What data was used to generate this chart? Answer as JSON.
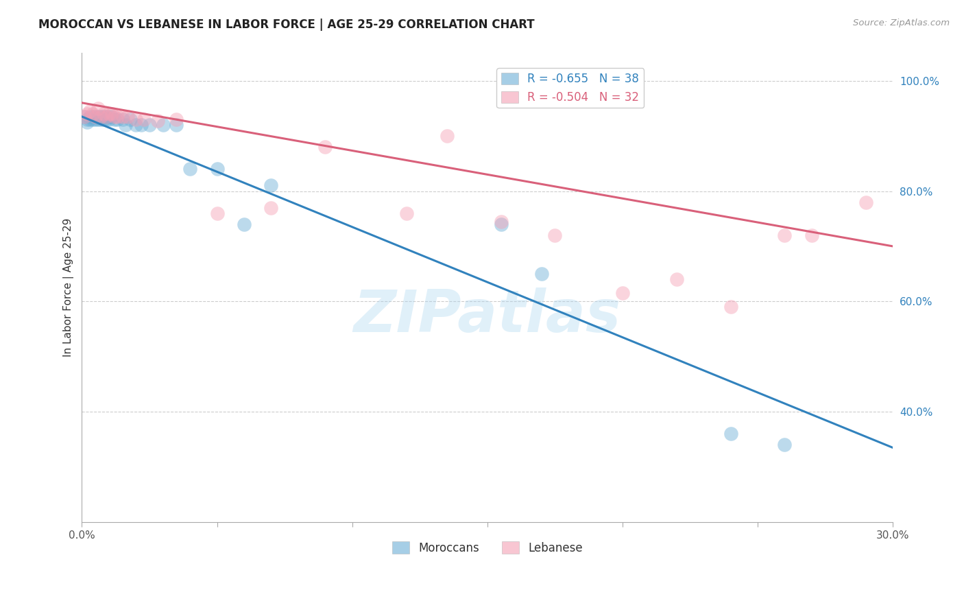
{
  "title": "MOROCCAN VS LEBANESE IN LABOR FORCE | AGE 25-29 CORRELATION CHART",
  "source": "Source: ZipAtlas.com",
  "ylabel": "In Labor Force | Age 25-29",
  "xlim": [
    0.0,
    0.3
  ],
  "ylim": [
    0.2,
    1.05
  ],
  "x_ticks": [
    0.0,
    0.05,
    0.1,
    0.15,
    0.2,
    0.25,
    0.3
  ],
  "x_tick_labels": [
    "0.0%",
    "",
    "",
    "",
    "",
    "",
    "30.0%"
  ],
  "y_ticks": [
    0.4,
    0.6,
    0.8,
    1.0
  ],
  "y_tick_labels": [
    "40.0%",
    "60.0%",
    "80.0%",
    "100.0%"
  ],
  "moroccan_color": "#6baed6",
  "lebanese_color": "#f4a0b5",
  "moroccan_line_color": "#3182bd",
  "lebanese_line_color": "#d9607a",
  "legend_moroccan_label": "R = -0.655   N = 38",
  "legend_lebanese_label": "R = -0.504   N = 32",
  "watermark": "ZIPatlas",
  "moroccan_x": [
    0.001,
    0.002,
    0.002,
    0.003,
    0.003,
    0.004,
    0.004,
    0.005,
    0.005,
    0.006,
    0.006,
    0.007,
    0.007,
    0.008,
    0.008,
    0.009,
    0.009,
    0.01,
    0.01,
    0.011,
    0.012,
    0.013,
    0.015,
    0.016,
    0.018,
    0.02,
    0.022,
    0.025,
    0.03,
    0.035,
    0.04,
    0.05,
    0.06,
    0.07,
    0.155,
    0.17,
    0.24,
    0.26
  ],
  "moroccan_y": [
    0.935,
    0.93,
    0.925,
    0.935,
    0.93,
    0.935,
    0.93,
    0.935,
    0.93,
    0.935,
    0.93,
    0.935,
    0.93,
    0.935,
    0.93,
    0.935,
    0.93,
    0.935,
    0.93,
    0.935,
    0.93,
    0.93,
    0.93,
    0.92,
    0.93,
    0.92,
    0.92,
    0.92,
    0.92,
    0.92,
    0.84,
    0.84,
    0.74,
    0.81,
    0.74,
    0.65,
    0.36,
    0.34
  ],
  "lebanese_x": [
    0.001,
    0.002,
    0.003,
    0.004,
    0.005,
    0.006,
    0.007,
    0.008,
    0.009,
    0.01,
    0.011,
    0.012,
    0.013,
    0.015,
    0.017,
    0.02,
    0.023,
    0.028,
    0.035,
    0.05,
    0.07,
    0.09,
    0.12,
    0.135,
    0.155,
    0.175,
    0.2,
    0.22,
    0.24,
    0.26,
    0.27,
    0.29
  ],
  "lebanese_y": [
    0.935,
    0.94,
    0.945,
    0.94,
    0.935,
    0.95,
    0.935,
    0.94,
    0.935,
    0.94,
    0.94,
    0.935,
    0.935,
    0.935,
    0.935,
    0.93,
    0.93,
    0.928,
    0.93,
    0.76,
    0.77,
    0.88,
    0.76,
    0.9,
    0.745,
    0.72,
    0.615,
    0.64,
    0.59,
    0.72,
    0.72,
    0.78
  ],
  "blue_line_x0": 0.0,
  "blue_line_y0": 0.935,
  "blue_line_x1": 0.3,
  "blue_line_y1": 0.335,
  "pink_line_x0": 0.0,
  "pink_line_y0": 0.96,
  "pink_line_x1": 0.3,
  "pink_line_y1": 0.7
}
